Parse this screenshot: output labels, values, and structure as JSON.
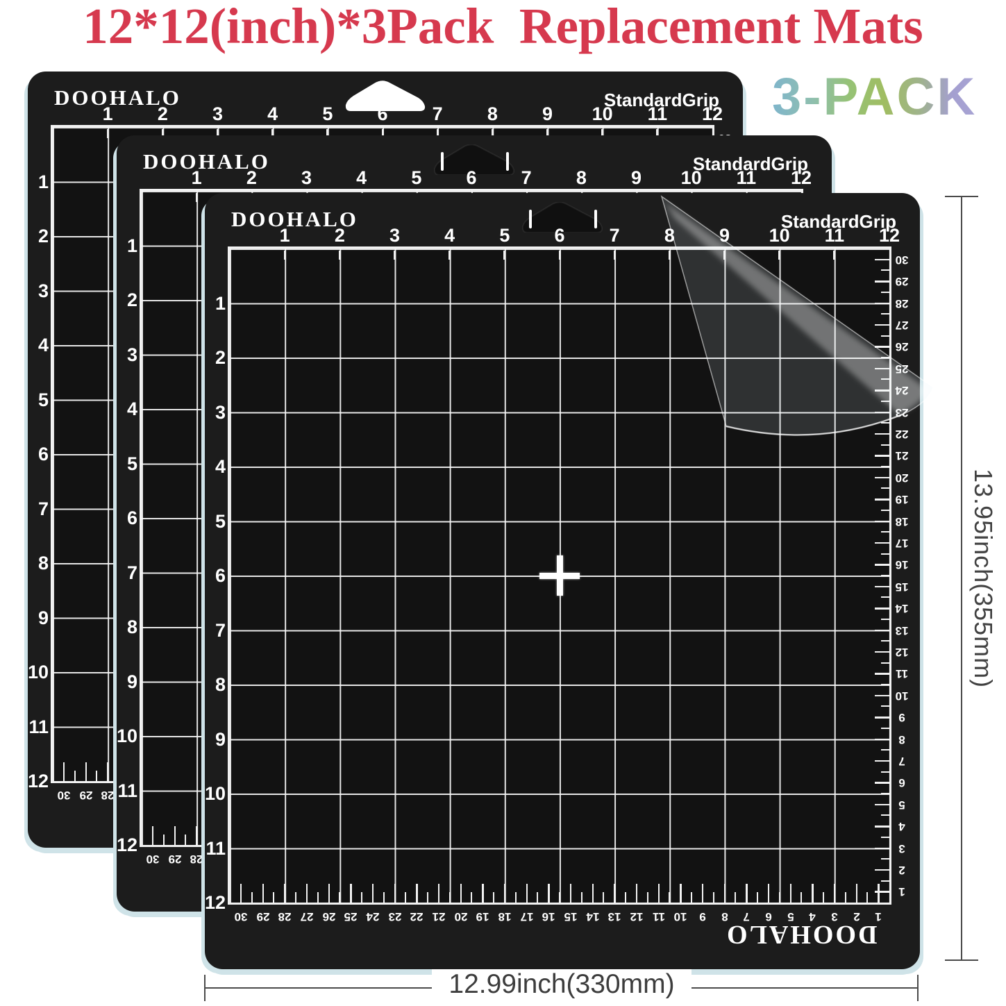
{
  "title": {
    "text": "12*12(inch)*3Pack  Replacement Mats"
  },
  "pack_badge": {
    "text": "3-PACK"
  },
  "mat": {
    "count": 3,
    "brand": "DOOHALO",
    "grip_label": "StandardGrip",
    "inch_numbers": [
      "1",
      "2",
      "3",
      "4",
      "5",
      "6",
      "7",
      "8",
      "9",
      "10",
      "11",
      "12"
    ],
    "cm_numbers": [
      "30",
      "29",
      "28",
      "27",
      "26",
      "25",
      "24",
      "23",
      "22",
      "21",
      "20",
      "19",
      "18",
      "17",
      "16",
      "15",
      "14",
      "13",
      "12",
      "11",
      "10",
      "9",
      "8",
      "7",
      "6",
      "5",
      "4",
      "3",
      "2",
      "1"
    ]
  },
  "dimensions": {
    "height_label": "13.95inch(355mm)",
    "width_label": "12.99inch(330mm)"
  },
  "colors": {
    "title_red": "#d6394e",
    "mat_black": "#1c1c1c",
    "grid_cell_black": "#121212",
    "grid_line_white": "#f2f2f2",
    "mat_edge_blue": "#cfe3e8",
    "dimension_gray": "#4a4a4a",
    "pack_gradient": [
      "#7fb5cb",
      "#96c275",
      "#a8a4d4"
    ]
  }
}
